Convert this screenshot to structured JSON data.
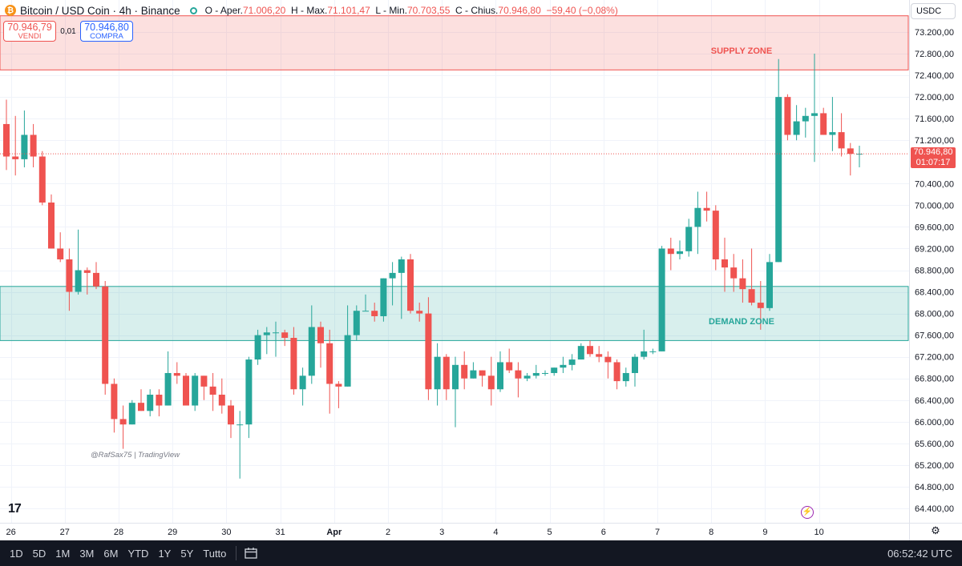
{
  "header": {
    "symbol": "Bitcoin / USD Coin · 4h · Binance",
    "open_label": "O - Aper.",
    "open_value": "71.006,20",
    "high_label": "H - Max.",
    "high_value": "71.101,47",
    "low_label": "L - Min.",
    "low_value": "70.703,55",
    "close_label": "C - Chius.",
    "close_value": "70.946,80",
    "change": "−59,40 (−0,08%)"
  },
  "trade": {
    "sell_price": "70.946,79",
    "sell_label": "VENDI",
    "spread": "0,01",
    "buy_price": "70.946,80",
    "buy_label": "COMPRA"
  },
  "currency": "USDC",
  "last_price": "70.946,80",
  "countdown": "01:07:17",
  "watermark": "@RafSax75 | TradingView",
  "logo": "17",
  "bottom_bar": {
    "timeframes": [
      "1D",
      "5D",
      "1M",
      "3M",
      "6M",
      "YTD",
      "1Y",
      "5Y",
      "Tutto"
    ],
    "clock": "06:52:42 UTC"
  },
  "icons": {
    "coin": "bitcoin-icon",
    "status": "market-status-icon",
    "settings": "gear-icon",
    "range": "date-range-icon",
    "alert": "lightning-icon"
  },
  "colors": {
    "up": "#26a69a",
    "down": "#ef5350",
    "supply_zone": "#f8d7da",
    "demand_zone": "#d4ecea"
  },
  "chart_data": {
    "type": "candlestick",
    "y_ticks": [
      "73.200,00",
      "72.800,00",
      "72.400,00",
      "72.000,00",
      "71.600,00",
      "71.200,00",
      "70.400,00",
      "70.000,00",
      "69.600,00",
      "69.200,00",
      "68.800,00",
      "68.400,00",
      "68.000,00",
      "67.600,00",
      "67.200,00",
      "66.800,00",
      "66.400,00",
      "66.000,00",
      "65.600,00",
      "65.200,00",
      "64.800,00",
      "64.400,00"
    ],
    "y_tick_values": [
      73200,
      72800,
      72400,
      72000,
      71600,
      71200,
      70400,
      70000,
      69600,
      69200,
      68800,
      68400,
      68000,
      67600,
      67200,
      66800,
      66400,
      66000,
      65600,
      65200,
      64800,
      64400
    ],
    "ylim": [
      64100,
      73800
    ],
    "x_ticks": [
      "26",
      "27",
      "28",
      "29",
      "30",
      "31",
      "Apr",
      "2",
      "3",
      "4",
      "5",
      "6",
      "7",
      "8",
      "9",
      "10"
    ],
    "x_tick_index": [
      0.5,
      6.5,
      12.5,
      18.5,
      24.5,
      30.5,
      36.5,
      42.5,
      48.5,
      54.5,
      60.5,
      66.5,
      72.5,
      78.5,
      84.5,
      90.5
    ],
    "zones": [
      {
        "label": "SUPPLY ZONE",
        "low": 72500,
        "high": 73500,
        "color": "#ef5350"
      },
      {
        "label": "DEMAND ZONE",
        "low": 67500,
        "high": 68500,
        "color": "#26a69a"
      }
    ],
    "candles": [
      [
        71500,
        71950,
        70650,
        70900
      ],
      [
        70900,
        71650,
        70550,
        70850
      ],
      [
        70850,
        71750,
        70700,
        71300
      ],
      [
        71300,
        71500,
        70700,
        70900
      ],
      [
        70900,
        71000,
        70000,
        70050
      ],
      [
        70050,
        70200,
        69200,
        69200
      ],
      [
        69200,
        69500,
        68950,
        69000
      ],
      [
        69000,
        69200,
        68050,
        68400
      ],
      [
        68400,
        69550,
        68350,
        68800
      ],
      [
        68800,
        68850,
        68350,
        68750
      ],
      [
        68750,
        68950,
        68450,
        68500
      ],
      [
        68500,
        68600,
        66500,
        66700
      ],
      [
        66700,
        66800,
        65800,
        66050
      ],
      [
        66050,
        66300,
        65500,
        65950
      ],
      [
        65950,
        66400,
        65950,
        66350
      ],
      [
        66350,
        66600,
        66200,
        66200
      ],
      [
        66200,
        66600,
        66100,
        66500
      ],
      [
        66500,
        66600,
        66100,
        66300
      ],
      [
        66300,
        67300,
        66300,
        66900
      ],
      [
        66900,
        67100,
        66700,
        66850
      ],
      [
        66850,
        66900,
        66300,
        66300
      ],
      [
        66300,
        66900,
        66200,
        66850
      ],
      [
        66850,
        66850,
        66400,
        66650
      ],
      [
        66650,
        66900,
        66200,
        66500
      ],
      [
        66500,
        66800,
        66150,
        66300
      ],
      [
        66300,
        66400,
        65700,
        65950
      ],
      [
        65950,
        66200,
        64950,
        65950
      ],
      [
        65950,
        67200,
        65700,
        67150
      ],
      [
        67150,
        67700,
        67050,
        67600
      ],
      [
        67600,
        67750,
        67250,
        67650
      ],
      [
        67650,
        67850,
        67200,
        67650
      ],
      [
        67650,
        67700,
        67400,
        67550
      ],
      [
        67550,
        67750,
        66500,
        66600
      ],
      [
        66600,
        67000,
        66300,
        66850
      ],
      [
        66850,
        68150,
        66700,
        67750
      ],
      [
        67750,
        67850,
        67000,
        67450
      ],
      [
        67450,
        67700,
        66150,
        66700
      ],
      [
        66700,
        66750,
        66250,
        66650
      ],
      [
        66650,
        68150,
        66650,
        67600
      ],
      [
        67600,
        68150,
        67500,
        68050
      ],
      [
        68050,
        68350,
        68050,
        68050
      ],
      [
        68050,
        68200,
        67850,
        67950
      ],
      [
        67950,
        68650,
        67850,
        68650
      ],
      [
        68650,
        68950,
        68150,
        68750
      ],
      [
        68750,
        69050,
        67900,
        69000
      ],
      [
        69000,
        69100,
        68000,
        68050
      ],
      [
        68050,
        68200,
        67850,
        68000
      ],
      [
        68000,
        68300,
        66400,
        66600
      ],
      [
        66600,
        67450,
        66300,
        67200
      ],
      [
        67200,
        67250,
        66400,
        66600
      ],
      [
        66600,
        67200,
        65900,
        67050
      ],
      [
        67050,
        67300,
        66600,
        66800
      ],
      [
        66800,
        67100,
        66800,
        66950
      ],
      [
        66950,
        66950,
        66650,
        66850
      ],
      [
        66850,
        67200,
        66300,
        66600
      ],
      [
        66600,
        67300,
        66550,
        67100
      ],
      [
        67100,
        67350,
        66900,
        66950
      ],
      [
        66950,
        67100,
        66450,
        66800
      ],
      [
        66800,
        66900,
        66750,
        66850
      ],
      [
        66850,
        67050,
        66800,
        66900
      ],
      [
        66900,
        66950,
        66850,
        66900
      ],
      [
        66900,
        67000,
        66850,
        67000
      ],
      [
        67000,
        67200,
        66900,
        67050
      ],
      [
        67050,
        67250,
        66950,
        67150
      ],
      [
        67150,
        67450,
        67150,
        67400
      ],
      [
        67400,
        67500,
        67200,
        67250
      ],
      [
        67250,
        67400,
        67100,
        67200
      ],
      [
        67200,
        67300,
        66800,
        67100
      ],
      [
        67100,
        67150,
        66600,
        66750
      ],
      [
        66750,
        67000,
        66650,
        66900
      ],
      [
        66900,
        67250,
        66650,
        67200
      ],
      [
        67200,
        67700,
        67150,
        67300
      ],
      [
        67300,
        67350,
        67250,
        67300
      ],
      [
        67300,
        69250,
        67300,
        69200
      ],
      [
        69200,
        69400,
        68800,
        69100
      ],
      [
        69100,
        69350,
        69000,
        69150
      ],
      [
        69150,
        69750,
        69050,
        69600
      ],
      [
        69600,
        70250,
        69100,
        69950
      ],
      [
        69950,
        70250,
        69700,
        69900
      ],
      [
        69900,
        70000,
        68800,
        69000
      ],
      [
        69000,
        69400,
        68400,
        68850
      ],
      [
        68850,
        69100,
        68400,
        68650
      ],
      [
        68650,
        69000,
        68200,
        68450
      ],
      [
        68450,
        69200,
        68150,
        68200
      ],
      [
        68200,
        68600,
        67700,
        68100
      ],
      [
        68100,
        69100,
        68050,
        68950
      ],
      [
        68950,
        72700,
        68950,
        72000
      ],
      [
        72000,
        72050,
        71200,
        71300
      ],
      [
        71300,
        71850,
        71200,
        71550
      ],
      [
        71550,
        71800,
        71250,
        71650
      ],
      [
        71650,
        72800,
        70800,
        71700
      ],
      [
        71700,
        71800,
        71300,
        71300
      ],
      [
        71300,
        72000,
        71000,
        71350
      ],
      [
        71350,
        71700,
        70900,
        71050
      ],
      [
        71050,
        71150,
        70550,
        70950
      ],
      [
        70950,
        71100,
        70700,
        70950
      ]
    ]
  }
}
